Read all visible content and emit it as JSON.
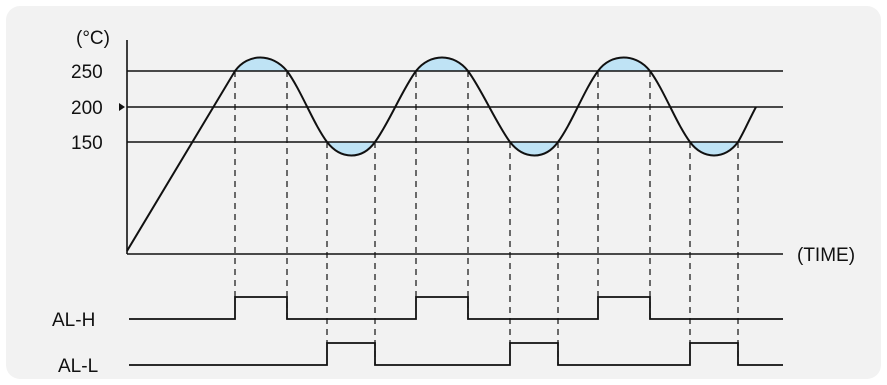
{
  "diagram": {
    "temp_unit": "(°C)",
    "time_label": "(TIME)",
    "levels": [
      {
        "label": "250",
        "value": 250
      },
      {
        "label": "200",
        "value": 200
      },
      {
        "label": "150",
        "value": 150
      }
    ],
    "setpoint_value": 200,
    "signals": [
      {
        "label": "AL-H"
      },
      {
        "label": "AL-L"
      }
    ],
    "colors": {
      "background": "#f2f2f2",
      "line": "#111111",
      "fill": "#bfe3f5"
    }
  }
}
